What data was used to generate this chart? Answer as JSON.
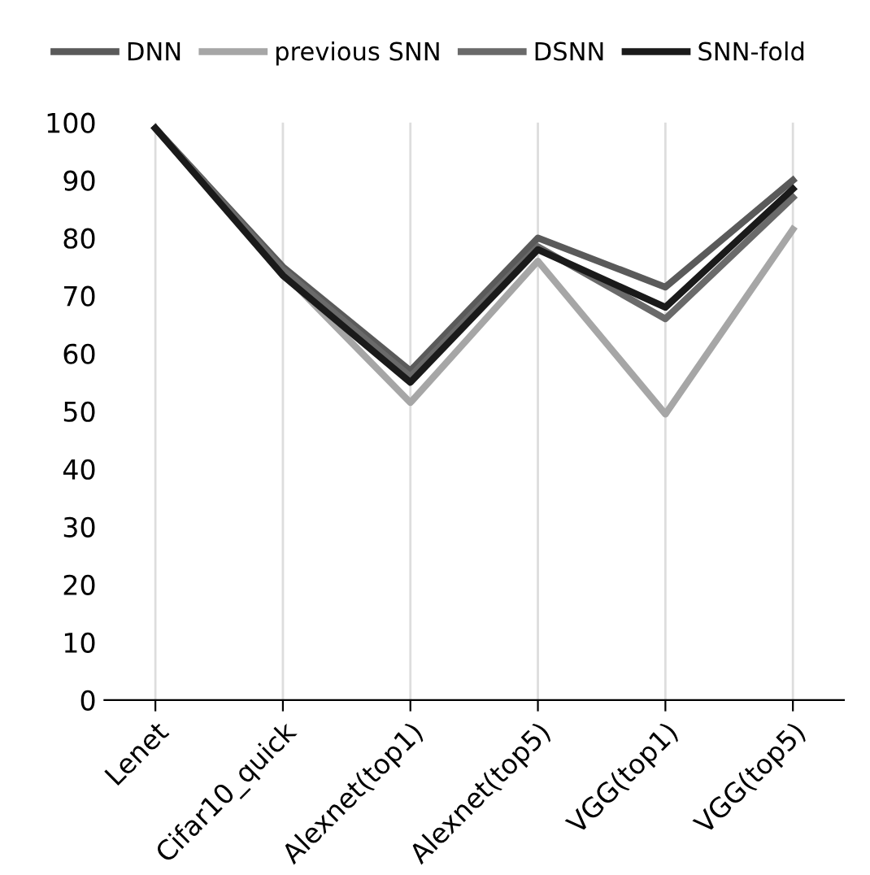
{
  "chart_data": {
    "type": "line",
    "categories": [
      "Lenet",
      "Cifar10_quick",
      "Alexnet(top1)",
      "Alexnet(top5)",
      "VGG(top1)",
      "VGG(top5)"
    ],
    "series": [
      {
        "name": "DNN",
        "color": "#5a5a5a",
        "values": [
          99,
          75,
          57,
          80,
          71.5,
          90
        ]
      },
      {
        "name": "previous SNN",
        "color": "#a6a6a6",
        "values": [
          99,
          74,
          51.5,
          76,
          49.5,
          81.5
        ]
      },
      {
        "name": "DSNN",
        "color": "#6a6a6a",
        "values": [
          99,
          74.5,
          56,
          78.5,
          66,
          87
        ]
      },
      {
        "name": "SNN-fold",
        "color": "#1a1a1a",
        "values": [
          99,
          73.5,
          55,
          78,
          68,
          88.5
        ]
      }
    ],
    "ylim": [
      0,
      100
    ],
    "yticks": [
      0,
      10,
      20,
      30,
      40,
      50,
      60,
      70,
      80,
      90,
      100
    ],
    "grid": "x",
    "legend": "top",
    "marker": "none",
    "line_style": "solid"
  }
}
